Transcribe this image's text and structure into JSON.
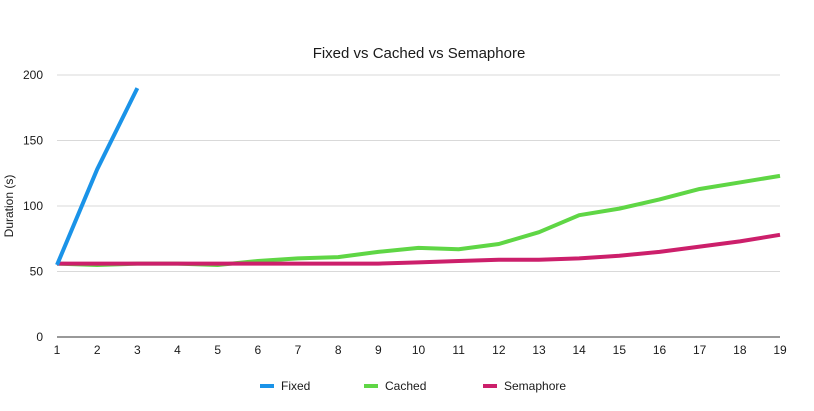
{
  "chart_data": {
    "type": "line",
    "title": "Fixed vs Cached vs Semaphore",
    "xlabel": "",
    "ylabel": "Duration (s)",
    "x": [
      1,
      2,
      3,
      4,
      5,
      6,
      7,
      8,
      9,
      10,
      11,
      12,
      13,
      14,
      15,
      16,
      17,
      18,
      19
    ],
    "ylim": [
      0,
      200
    ],
    "yticks": [
      0,
      50,
      100,
      150,
      200
    ],
    "grid": true,
    "legend_position": "bottom",
    "series": [
      {
        "name": "Fixed",
        "color": "#1a93e8",
        "values": [
          55,
          128,
          190,
          null,
          null,
          null,
          null,
          null,
          null,
          null,
          null,
          null,
          null,
          null,
          null,
          null,
          null,
          null,
          null
        ]
      },
      {
        "name": "Cached",
        "color": "#5fd645",
        "values": [
          56,
          55,
          56,
          56,
          55,
          58,
          60,
          61,
          65,
          68,
          67,
          71,
          80,
          93,
          98,
          105,
          113,
          118,
          123
        ]
      },
      {
        "name": "Semaphore",
        "color": "#cc1f6b",
        "values": [
          56,
          56,
          56,
          56,
          56,
          56,
          56,
          56,
          56,
          57,
          58,
          59,
          59,
          60,
          62,
          65,
          69,
          73,
          78
        ]
      }
    ]
  }
}
